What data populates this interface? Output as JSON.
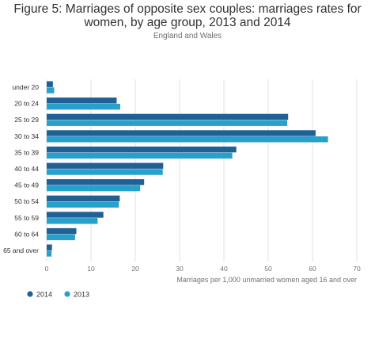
{
  "chart_data": {
    "type": "bar",
    "orientation": "horizontal",
    "title": "Figure 5: Marriages of opposite sex couples: marriages rates for women, by age group, 2013 and 2014",
    "subtitle": "England and Wales",
    "xlabel": "Marriages per 1,000 unmarried women aged 16 and over",
    "ylabel": "",
    "xlim": [
      0,
      70
    ],
    "xticks": [
      0,
      10,
      20,
      30,
      40,
      50,
      60,
      70
    ],
    "grid": true,
    "legend_position": "bottom-left",
    "categories": [
      "under 20",
      "20 to 24",
      "25 to 29",
      "30 to 34",
      "35 to 39",
      "40 to 44",
      "45 to 49",
      "50 to 54",
      "55 to 59",
      "60 to 64",
      "65 and over"
    ],
    "series": [
      {
        "name": "2014",
        "color": "#206095",
        "values": [
          1.4,
          15.8,
          54.5,
          60.7,
          42.8,
          26.3,
          22.0,
          16.5,
          12.8,
          6.7,
          1.2
        ]
      },
      {
        "name": "2013",
        "color": "#27a0cc",
        "values": [
          1.7,
          16.6,
          54.3,
          63.5,
          41.9,
          26.2,
          21.1,
          16.3,
          11.5,
          6.4,
          1.1
        ]
      }
    ]
  }
}
